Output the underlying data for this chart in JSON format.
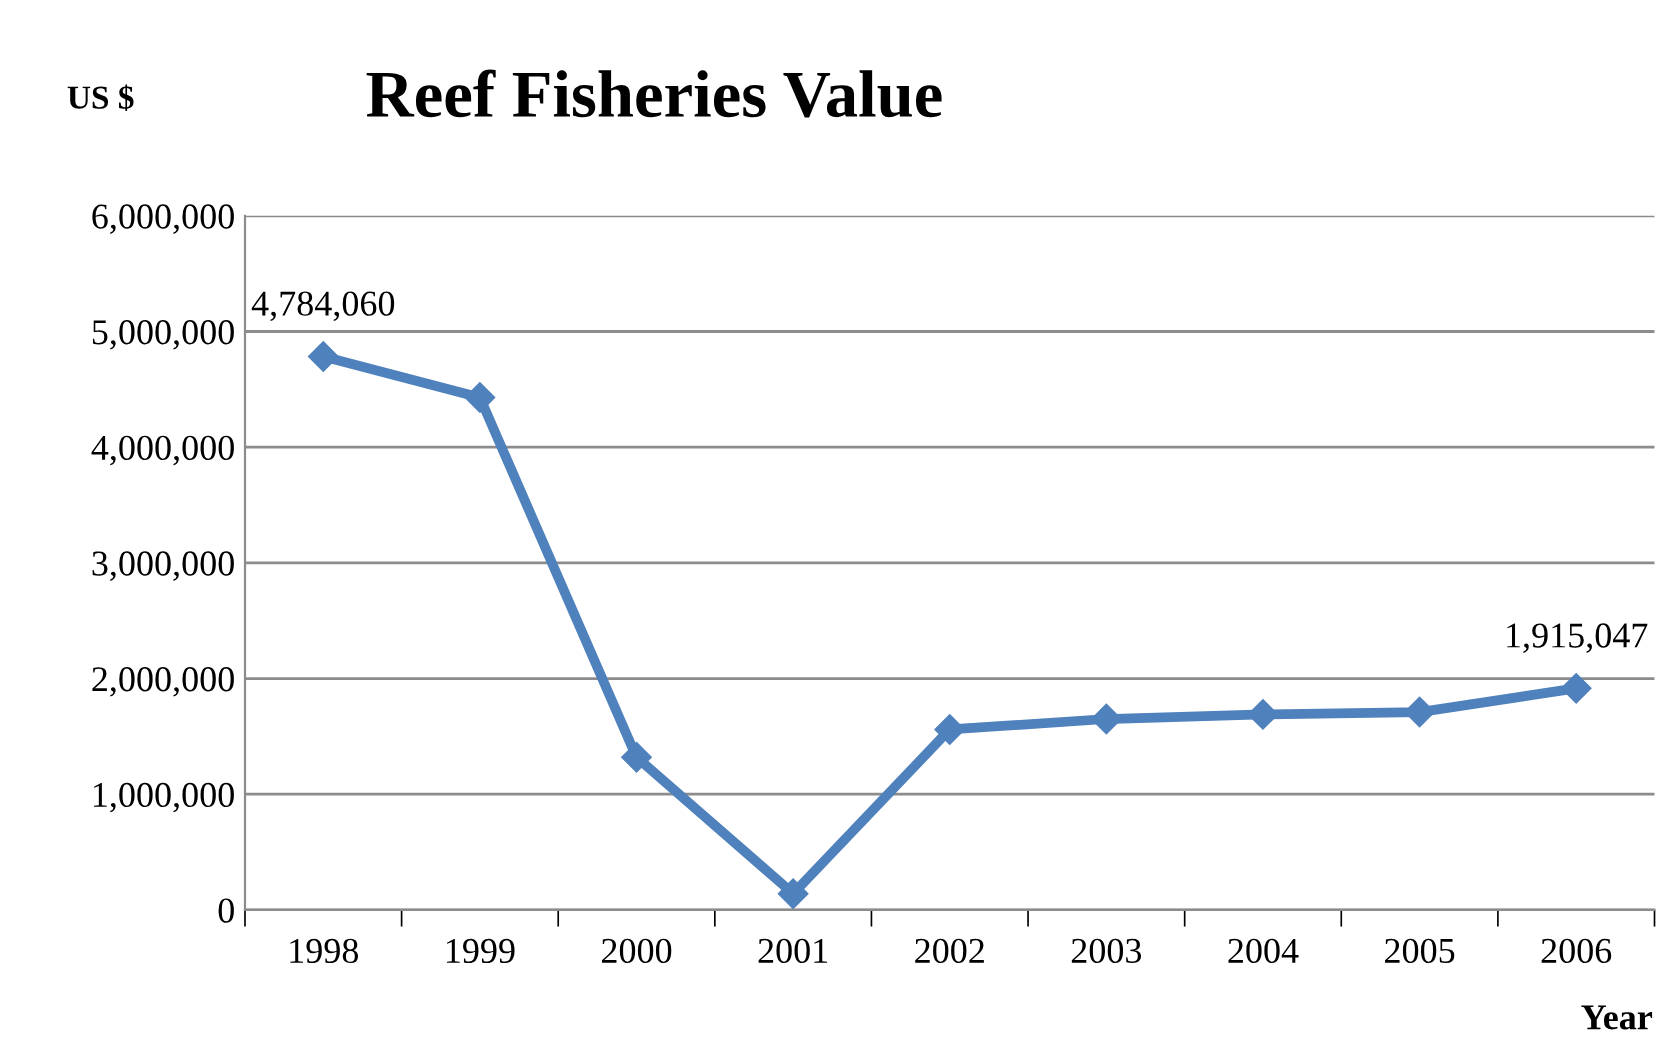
{
  "chart_data": {
    "type": "line",
    "title": "Reef Fisheries Value",
    "xlabel": "Year",
    "ylabel": "US $",
    "categories": [
      "1998",
      "1999",
      "2000",
      "2001",
      "2002",
      "2003",
      "2004",
      "2005",
      "2006"
    ],
    "series": [
      {
        "color": "#4f81bd",
        "values": [
          4784060,
          4430000,
          1320000,
          140000,
          1560000,
          1650000,
          1690000,
          1710000,
          1915047
        ],
        "value_labels": [
          "4,784,060",
          null,
          null,
          null,
          null,
          null,
          null,
          null,
          "1,915,047"
        ]
      }
    ],
    "ylim": [
      0,
      6000000
    ],
    "yticks": [
      {
        "value": 0,
        "label": "0"
      },
      {
        "value": 1000000,
        "label": "1,000,000"
      },
      {
        "value": 2000000,
        "label": "2,000,000"
      },
      {
        "value": 3000000,
        "label": "3,000,000"
      },
      {
        "value": 4000000,
        "label": "4,000,000"
      },
      {
        "value": 5000000,
        "label": "5,000,000"
      },
      {
        "value": 6000000,
        "label": "6,000,000"
      }
    ],
    "grid": "y",
    "marker": "diamond",
    "line_style": "solid",
    "legend": false
  }
}
